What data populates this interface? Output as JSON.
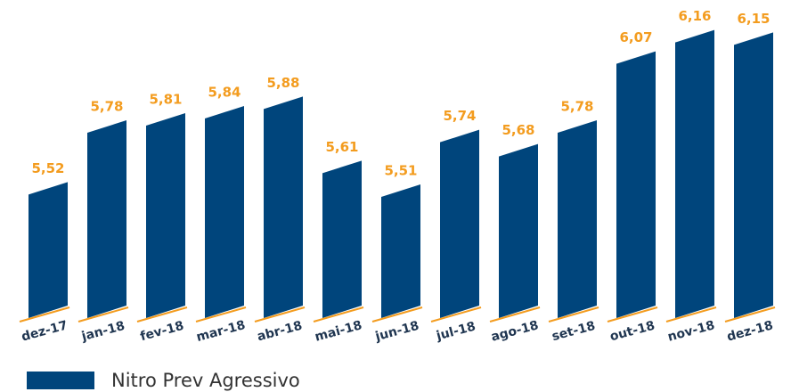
{
  "chart_data": {
    "type": "bar",
    "categories": [
      "dez-17",
      "jan-18",
      "fev-18",
      "mar-18",
      "abr-18",
      "mai-18",
      "jun-18",
      "jul-18",
      "ago-18",
      "set-18",
      "out-18",
      "nov-18",
      "dez-18"
    ],
    "series": [
      {
        "name": "Nitro Prev Agressivo",
        "color": "#00457c",
        "values": [
          5.52,
          5.78,
          5.81,
          5.84,
          5.88,
          5.61,
          5.51,
          5.74,
          5.68,
          5.78,
          6.07,
          6.16,
          6.15
        ],
        "value_labels": [
          "5,52",
          "5,78",
          "5,81",
          "5,84",
          "5,88",
          "5,61",
          "5,51",
          "5,74",
          "5,68",
          "5,78",
          "6,07",
          "6,16",
          "6,15"
        ]
      }
    ],
    "label_color": "#f39c1f",
    "ylim": [
      5,
      6.2
    ]
  }
}
